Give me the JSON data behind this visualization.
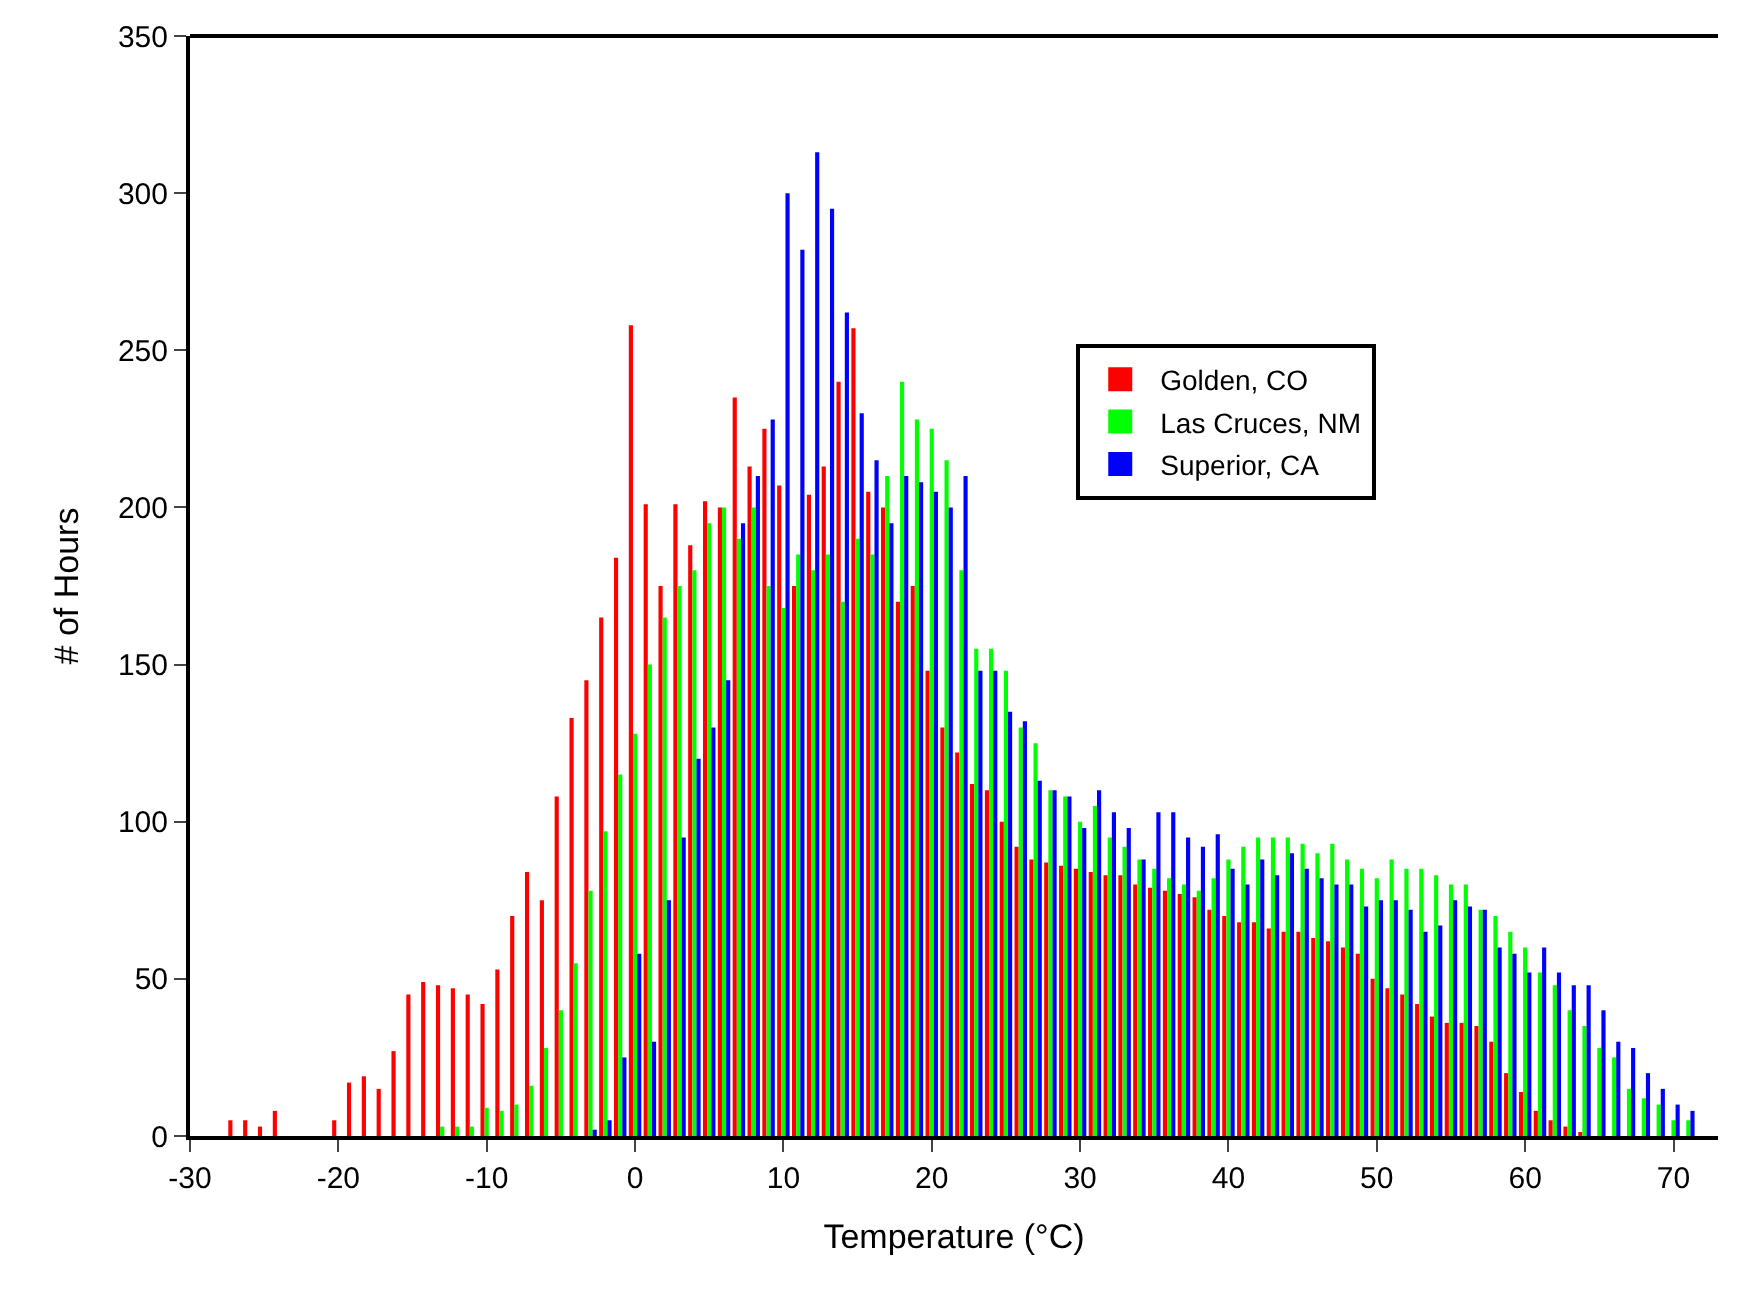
{
  "chart_data": {
    "type": "bar",
    "xlabel": "Temperature (°C)",
    "ylabel": "# of Hours",
    "x": [
      -27,
      -26,
      -25,
      -24,
      -23,
      -22,
      -21,
      -20,
      -19,
      -18,
      -17,
      -16,
      -15,
      -14,
      -13,
      -12,
      -11,
      -10,
      -9,
      -8,
      -7,
      -6,
      -5,
      -4,
      -3,
      -2,
      -1,
      0,
      1,
      2,
      3,
      4,
      5,
      6,
      7,
      8,
      9,
      10,
      11,
      12,
      13,
      14,
      15,
      16,
      17,
      18,
      19,
      20,
      21,
      22,
      23,
      24,
      25,
      26,
      27,
      28,
      29,
      30,
      31,
      32,
      33,
      34,
      35,
      36,
      37,
      38,
      39,
      40,
      41,
      42,
      43,
      44,
      45,
      46,
      47,
      48,
      49,
      50,
      51,
      52,
      53,
      54,
      55,
      56,
      57,
      58,
      59,
      60,
      61,
      62,
      63,
      64,
      65,
      66,
      67,
      68,
      69,
      70,
      71,
      72
    ],
    "series": [
      {
        "name": "Golden, CO",
        "color": "#ff0000",
        "values": [
          5,
          5,
          3,
          8,
          0,
          0,
          0,
          5,
          17,
          19,
          15,
          27,
          45,
          49,
          48,
          47,
          45,
          42,
          53,
          70,
          84,
          75,
          108,
          133,
          145,
          165,
          184,
          258,
          201,
          175,
          201,
          188,
          202,
          200,
          235,
          213,
          225,
          207,
          175,
          204,
          213,
          240,
          257,
          205,
          200,
          170,
          175,
          148,
          130,
          122,
          112,
          110,
          100,
          92,
          88,
          87,
          86,
          85,
          84,
          83,
          83,
          80,
          79,
          78,
          77,
          76,
          72,
          70,
          68,
          68,
          66,
          65,
          65,
          63,
          62,
          60,
          58,
          50,
          47,
          45,
          42,
          38,
          36,
          36,
          35,
          30,
          20,
          14,
          8,
          5,
          3,
          1,
          0,
          0,
          0,
          0,
          0,
          0,
          0,
          0
        ]
      },
      {
        "name": "Las Cruces, NM",
        "color": "#00ff00",
        "values": [
          0,
          0,
          0,
          0,
          0,
          0,
          0,
          0,
          0,
          0,
          0,
          0,
          0,
          0,
          3,
          3,
          3,
          9,
          8,
          10,
          16,
          28,
          40,
          55,
          78,
          97,
          115,
          128,
          150,
          165,
          175,
          180,
          195,
          200,
          190,
          200,
          175,
          168,
          185,
          180,
          185,
          170,
          190,
          185,
          210,
          240,
          228,
          225,
          215,
          180,
          155,
          155,
          148,
          130,
          125,
          110,
          108,
          100,
          105,
          95,
          92,
          88,
          85,
          82,
          80,
          78,
          82,
          88,
          92,
          95,
          95,
          95,
          93,
          90,
          93,
          88,
          85,
          82,
          88,
          85,
          85,
          83,
          80,
          80,
          72,
          70,
          65,
          60,
          52,
          48,
          40,
          35,
          28,
          25,
          15,
          12,
          10,
          5,
          5,
          0
        ]
      },
      {
        "name": "Superior, CA",
        "color": "#0000ff",
        "values": [
          0,
          0,
          0,
          0,
          0,
          0,
          0,
          0,
          0,
          0,
          0,
          0,
          0,
          0,
          0,
          0,
          0,
          0,
          0,
          0,
          0,
          0,
          0,
          0,
          2,
          5,
          25,
          58,
          30,
          75,
          95,
          120,
          130,
          145,
          195,
          210,
          228,
          300,
          282,
          313,
          295,
          262,
          230,
          215,
          195,
          210,
          208,
          205,
          200,
          210,
          148,
          148,
          135,
          132,
          113,
          110,
          108,
          98,
          110,
          103,
          98,
          88,
          103,
          103,
          95,
          92,
          96,
          85,
          80,
          88,
          83,
          90,
          85,
          82,
          80,
          80,
          73,
          75,
          75,
          72,
          65,
          67,
          75,
          73,
          72,
          60,
          58,
          52,
          60,
          52,
          48,
          48,
          40,
          30,
          28,
          20,
          15,
          10,
          8,
          0
        ]
      }
    ],
    "xlim": [
      -30,
      73
    ],
    "xticks": [
      -30,
      -20,
      -10,
      0,
      10,
      20,
      30,
      40,
      50,
      60,
      70
    ],
    "ylim": [
      0,
      350
    ],
    "yticks": [
      0,
      50,
      100,
      150,
      200,
      250,
      300,
      350
    ],
    "legend": "top right"
  }
}
